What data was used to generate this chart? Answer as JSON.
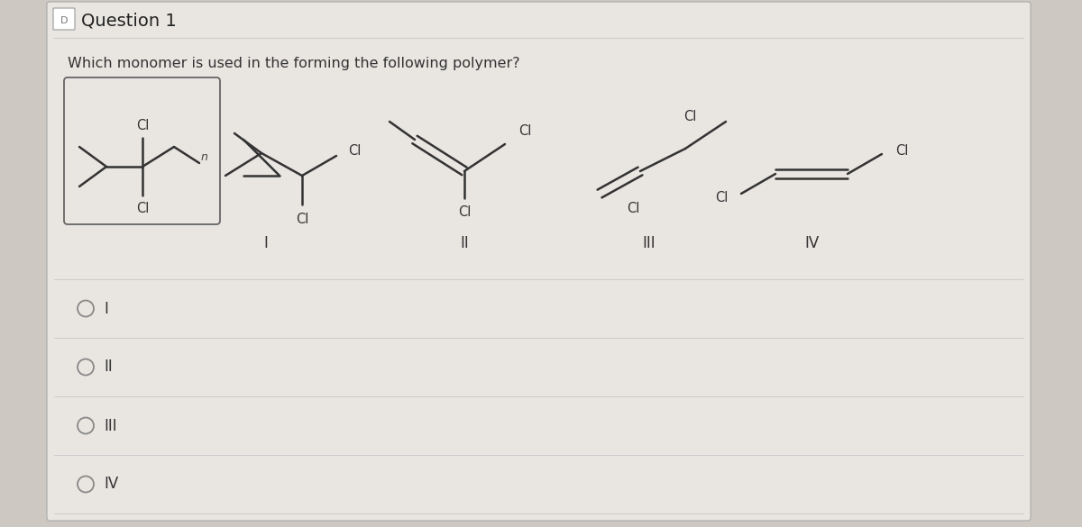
{
  "title": "Question 1",
  "question_text": "Which monomer is used in the forming the following polymer?",
  "bg_outer": "#cdc8c2",
  "bg_inner": "#e9e6e2",
  "line_color": "#333333",
  "cl_color": "#333333",
  "sep_color": "#cccccc",
  "options": [
    "I",
    "II",
    "III",
    "IV"
  ],
  "title_fontsize": 14,
  "question_fontsize": 11.5,
  "option_fontsize": 12,
  "struct_label_fontsize": 12,
  "cl_fontsize": 10.5,
  "n_fontsize": 9
}
